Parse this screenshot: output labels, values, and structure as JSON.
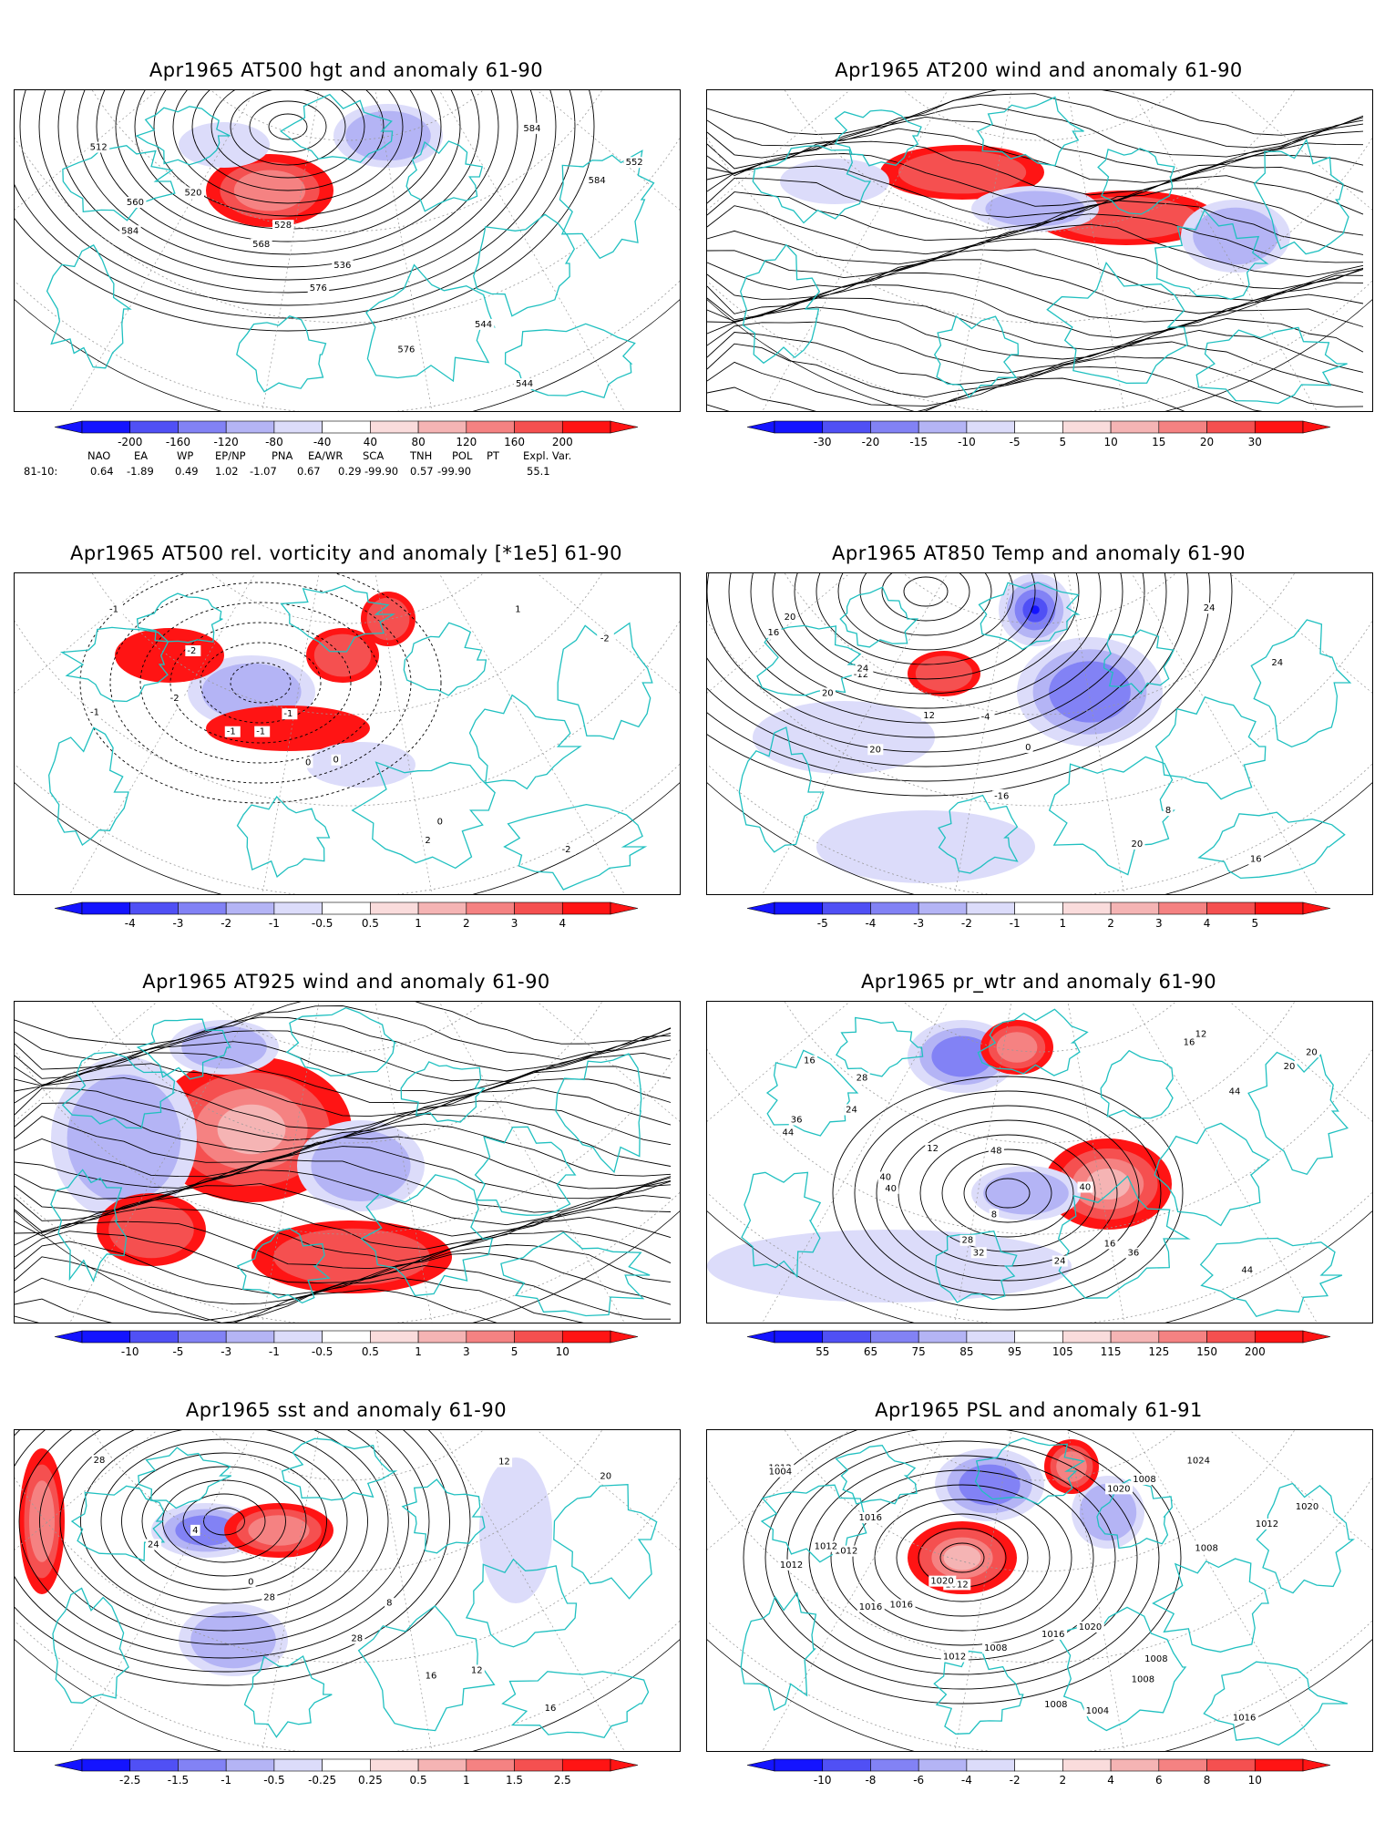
{
  "panels": [
    {
      "id": "p1",
      "title": "Apr1965 AT500 hgt and anomaly 61-90",
      "ticks": [
        "-200",
        "-160",
        "-120",
        "-80",
        "-40",
        "40",
        "80",
        "120",
        "160",
        "200"
      ],
      "contour_labels": [
        "512",
        "520",
        "528",
        "536",
        "544",
        "544",
        "552",
        "560",
        "568",
        "576",
        "576",
        "584",
        "584",
        "584"
      ]
    },
    {
      "id": "p2",
      "title": "Apr1965 AT200 wind and anomaly 61-90",
      "ticks": [
        "-30",
        "-20",
        "-15",
        "-10",
        "-5",
        "5",
        "10",
        "15",
        "20",
        "30"
      ],
      "contour_labels": []
    },
    {
      "id": "p3",
      "title": "Apr1965 AT500 rel. vorticity and anomaly [*1e5] 61-90",
      "ticks": [
        "-4",
        "-3",
        "-2",
        "-1",
        "-0.5",
        "0.5",
        "1",
        "2",
        "3",
        "4"
      ],
      "contour_labels": [
        "-1",
        "-2",
        "-1",
        "0",
        "0",
        "-2",
        "-1",
        "-2",
        "-1",
        "0",
        "2",
        "1",
        "-2",
        "-1",
        "-1"
      ]
    },
    {
      "id": "p4",
      "title": "Apr1965 AT850 Temp and anomaly 61-90",
      "ticks": [
        "-5",
        "-4",
        "-3",
        "-2",
        "-1",
        "1",
        "2",
        "3",
        "4",
        "5"
      ],
      "contour_labels": [
        "20",
        "-12",
        "-4",
        "0",
        "8",
        "16",
        "16",
        "24",
        "12",
        "16",
        "20",
        "24",
        "24",
        "20",
        "20",
        "-16"
      ]
    },
    {
      "id": "p5",
      "title": "Apr1965 AT925 wind and anomaly 61-90",
      "ticks": [
        "-10",
        "-5",
        "-3",
        "-1",
        "-0.5",
        "0.5",
        "1",
        "3",
        "5",
        "10"
      ],
      "contour_labels": []
    },
    {
      "id": "p6",
      "title": "Apr1965 pr_wtr and anomaly 61-90",
      "ticks": [
        "55",
        "65",
        "75",
        "85",
        "95",
        "105",
        "115",
        "125",
        "150",
        "200"
      ],
      "contour_labels": [
        "16",
        "28",
        "48",
        "40",
        "36",
        "44",
        "20",
        "24",
        "12",
        "8",
        "16",
        "12",
        "20",
        "36",
        "40",
        "28",
        "24",
        "16",
        "44",
        "44",
        "40",
        "32"
      ]
    },
    {
      "id": "p7",
      "title": "Apr1965 sst and anomaly 61-90",
      "ticks": [
        "-2.5",
        "-1.5",
        "-1",
        "-0.5",
        "-0.25",
        "0.25",
        "0.5",
        "1",
        "1.5",
        "2.5"
      ],
      "contour_labels": [
        "28",
        "4",
        "0",
        "8",
        "12",
        "16",
        "20",
        "24",
        "28",
        "28",
        "16",
        "12"
      ]
    },
    {
      "id": "p8",
      "title": "Apr1965 PSL and anomaly 61-91",
      "ticks": [
        "-10",
        "-8",
        "-6",
        "-4",
        "-2",
        "2",
        "4",
        "6",
        "8",
        "10"
      ],
      "contour_labels": [
        "1012",
        "1016",
        "1012",
        "1020",
        "1008",
        "1016",
        "1004",
        "1012",
        "1020",
        "1016",
        "1008",
        "1024",
        "1020",
        "1012",
        "1016",
        "1008",
        "1004",
        "1008",
        "1012",
        "1012",
        "1016",
        "1012",
        "1008",
        "1020",
        "1008"
      ]
    }
  ],
  "teleconnection_indices": {
    "headers": [
      "NAO",
      "EA",
      "WP",
      "EP/NP",
      "PNA",
      "EA/WR",
      "SCA",
      "TNH",
      "POL",
      "PT",
      "Expl. Var."
    ],
    "row_label": "81-10:",
    "values": [
      "0.64",
      "-1.89",
      "0.49",
      "1.02",
      "-1.07",
      "0.67",
      "0.29",
      "-99.90",
      "0.57",
      "-99.90",
      "55.1"
    ]
  },
  "colorbar_colors": {
    "negative": [
      "#1414ff",
      "#5050f5",
      "#8282f5",
      "#b4b4f5",
      "#dcdcfa"
    ],
    "neutral": "#ffffff",
    "positive": [
      "#fadcdc",
      "#f5b4b4",
      "#f58282",
      "#f55050",
      "#ff1414"
    ]
  },
  "map_colors": {
    "coastline": "#20c0c0",
    "contour": "#000000",
    "grid": "#999999"
  }
}
